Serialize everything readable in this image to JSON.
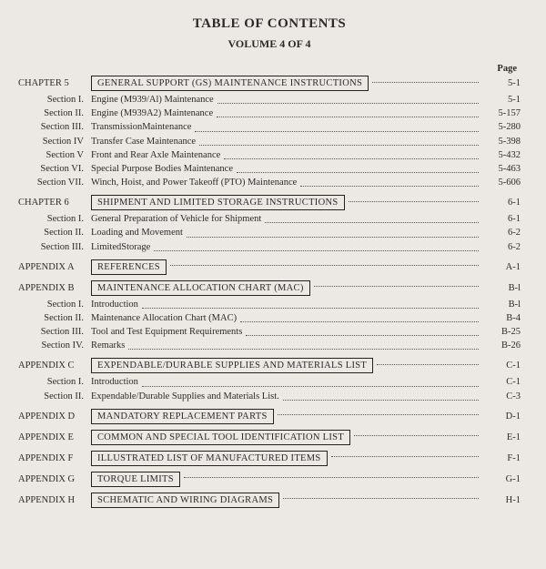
{
  "title": "TABLE OF CONTENTS",
  "subtitle": "VOLUME 4 OF 4",
  "page_header": "Page",
  "chapters": [
    {
      "label": "CHAPTER 5",
      "heading": "GENERAL SUPPORT (GS) MAINTENANCE INSTRUCTIONS",
      "page": "5-1",
      "sections": [
        {
          "label": "Section I.",
          "title": "Engine (M939/Al) Maintenance",
          "page": "5-1"
        },
        {
          "label": "Section II.",
          "title": "Engine (M939A2) Maintenance",
          "page": "5-157"
        },
        {
          "label": "Section III.",
          "title": "TransmissionMaintenance",
          "page": "5-280"
        },
        {
          "label": "Section IV",
          "title": "Transfer Case Maintenance",
          "page": "5-398"
        },
        {
          "label": "Section V",
          "title": "Front and Rear Axle Maintenance",
          "page": "5-432"
        },
        {
          "label": "Section VI.",
          "title": "Special Purpose Bodies Maintenance",
          "page": "5-463"
        },
        {
          "label": "Section VII.",
          "title": "Winch, Hoist, and Power Takeoff (PTO) Maintenance",
          "page": "5-606"
        }
      ]
    },
    {
      "label": "CHAPTER 6",
      "heading": "SHIPMENT AND LIMITED STORAGE INSTRUCTIONS",
      "page": "6-1",
      "sections": [
        {
          "label": "Section I.",
          "title": "General Preparation of Vehicle for Shipment",
          "page": "6-1"
        },
        {
          "label": "Section II.",
          "title": "Loading and Movement",
          "page": "6-2"
        },
        {
          "label": "Section III.",
          "title": "LimitedStorage",
          "page": "6-2"
        }
      ]
    },
    {
      "label": "APPENDIX A",
      "heading": "REFERENCES",
      "page": "A-1",
      "sections": []
    },
    {
      "label": "APPENDIX B",
      "heading": "MAINTENANCE ALLOCATION CHART (MAC)",
      "page": "B-l",
      "sections": [
        {
          "label": "Section I.",
          "title": "Introduction",
          "page": "B-l"
        },
        {
          "label": "Section II.",
          "title": "Maintenance Allocation Chart (MAC)",
          "page": "B-4"
        },
        {
          "label": "Section III.",
          "title": "Tool and Test Equipment Requirements",
          "page": "B-25"
        },
        {
          "label": "Section IV.",
          "title": "Remarks",
          "page": "B-26"
        }
      ]
    },
    {
      "label": "APPENDIX C",
      "heading": "EXPENDABLE/DURABLE SUPPLIES AND MATERIALS LIST",
      "page": "C-1",
      "sections": [
        {
          "label": "Section I.",
          "title": "Introduction",
          "page": "C-1"
        },
        {
          "label": "Section II.",
          "title": "Expendable/Durable Supplies and Materials List.",
          "page": "C-3"
        }
      ]
    },
    {
      "label": "APPENDIX D",
      "heading": "MANDATORY REPLACEMENT PARTS",
      "page": "D-1",
      "sections": []
    },
    {
      "label": "APPENDIX E",
      "heading": "COMMON AND SPECIAL TOOL IDENTIFICATION LIST",
      "page": "E-1",
      "sections": []
    },
    {
      "label": "APPENDIX F",
      "heading": "ILLUSTRATED LIST OF MANUFACTURED ITEMS",
      "page": "F-1",
      "sections": []
    },
    {
      "label": "APPENDIX G",
      "heading": "TORQUE LIMITS",
      "page": "G-1",
      "sections": []
    },
    {
      "label": "APPENDIX H",
      "heading": "SCHEMATIC AND WIRING DIAGRAMS",
      "page": "H-1",
      "sections": []
    }
  ]
}
